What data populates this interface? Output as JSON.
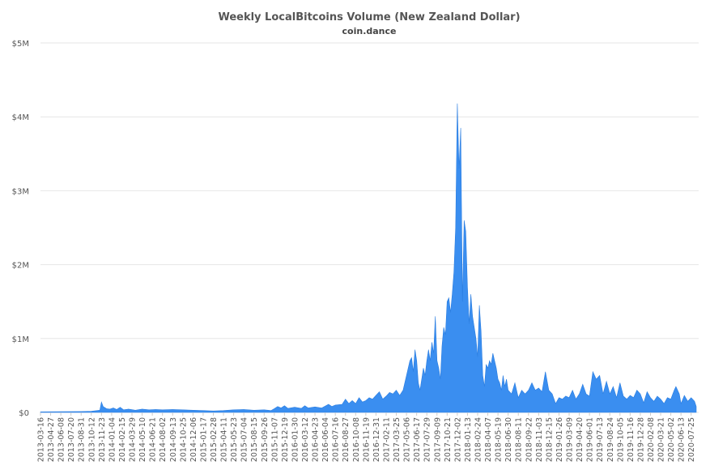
{
  "chart_data": {
    "type": "area",
    "title": "Weekly LocalBitcoins Volume (New Zealand Dollar)",
    "subtitle": "coin.dance",
    "xlabel": "",
    "ylabel": "",
    "ylim": [
      0,
      5000000
    ],
    "y_ticks": [
      {
        "value": 0,
        "label": "$0"
      },
      {
        "value": 1000000,
        "label": "$1M"
      },
      {
        "value": 2000000,
        "label": "$2M"
      },
      {
        "value": 3000000,
        "label": "$3M"
      },
      {
        "value": 4000000,
        "label": "$4M"
      },
      {
        "value": 5000000,
        "label": "$5M"
      }
    ],
    "x_start": "2013-03-16",
    "x_end": "2020-08-15",
    "x_ticks": [
      "2013-03-16",
      "2013-04-27",
      "2013-06-08",
      "2013-07-20",
      "2013-08-31",
      "2013-10-12",
      "2013-11-23",
      "2014-01-04",
      "2014-02-15",
      "2014-03-29",
      "2014-05-10",
      "2014-06-21",
      "2014-08-02",
      "2014-09-13",
      "2014-10-25",
      "2014-12-06",
      "2015-01-17",
      "2015-02-28",
      "2015-04-11",
      "2015-05-23",
      "2015-07-04",
      "2015-08-15",
      "2015-09-26",
      "2015-11-07",
      "2015-12-19",
      "2016-01-30",
      "2016-03-12",
      "2016-04-23",
      "2016-06-04",
      "2016-07-16",
      "2016-08-27",
      "2016-10-08",
      "2016-11-19",
      "2016-12-31",
      "2017-02-11",
      "2017-03-25",
      "2017-05-06",
      "2017-06-17",
      "2017-07-29",
      "2017-09-09",
      "2017-10-21",
      "2017-12-02",
      "2018-01-13",
      "2018-02-24",
      "2018-04-07",
      "2018-05-19",
      "2018-06-30",
      "2018-08-11",
      "2018-09-22",
      "2018-11-03",
      "2018-12-15",
      "2019-01-26",
      "2019-03-09",
      "2019-04-20",
      "2019-06-01",
      "2019-07-13",
      "2019-08-24",
      "2019-10-05",
      "2019-11-16",
      "2019-12-28",
      "2020-02-08",
      "2020-03-21",
      "2020-05-02",
      "2020-06-13",
      "2020-07-25"
    ],
    "series": [
      {
        "color": "#3a8ef0",
        "points": [
          [
            "2013-03-16",
            8000
          ],
          [
            "2013-06-08",
            10000
          ],
          [
            "2013-08-31",
            12000
          ],
          [
            "2013-10-12",
            15000
          ],
          [
            "2013-11-16",
            30000
          ],
          [
            "2013-11-23",
            140000
          ],
          [
            "2013-11-30",
            80000
          ],
          [
            "2013-12-14",
            50000
          ],
          [
            "2013-12-28",
            45000
          ],
          [
            "2014-01-11",
            60000
          ],
          [
            "2014-01-25",
            40000
          ],
          [
            "2014-02-08",
            70000
          ],
          [
            "2014-02-22",
            35000
          ],
          [
            "2014-03-15",
            45000
          ],
          [
            "2014-04-12",
            30000
          ],
          [
            "2014-05-10",
            45000
          ],
          [
            "2014-06-07",
            35000
          ],
          [
            "2014-07-05",
            40000
          ],
          [
            "2014-08-02",
            35000
          ],
          [
            "2014-09-13",
            40000
          ],
          [
            "2014-10-25",
            35000
          ],
          [
            "2014-12-06",
            30000
          ],
          [
            "2015-01-17",
            25000
          ],
          [
            "2015-02-28",
            20000
          ],
          [
            "2015-04-11",
            25000
          ],
          [
            "2015-05-23",
            35000
          ],
          [
            "2015-07-04",
            40000
          ],
          [
            "2015-08-15",
            30000
          ],
          [
            "2015-09-26",
            35000
          ],
          [
            "2015-10-24",
            25000
          ],
          [
            "2015-11-07",
            50000
          ],
          [
            "2015-11-21",
            80000
          ],
          [
            "2015-12-05",
            60000
          ],
          [
            "2015-12-19",
            90000
          ],
          [
            "2016-01-02",
            55000
          ],
          [
            "2016-01-30",
            70000
          ],
          [
            "2016-02-27",
            55000
          ],
          [
            "2016-03-12",
            90000
          ],
          [
            "2016-03-26",
            60000
          ],
          [
            "2016-04-23",
            75000
          ],
          [
            "2016-05-21",
            60000
          ],
          [
            "2016-06-18",
            110000
          ],
          [
            "2016-07-02",
            80000
          ],
          [
            "2016-07-16",
            100000
          ],
          [
            "2016-08-13",
            110000
          ],
          [
            "2016-08-27",
            180000
          ],
          [
            "2016-09-10",
            120000
          ],
          [
            "2016-09-24",
            160000
          ],
          [
            "2016-10-08",
            120000
          ],
          [
            "2016-10-22",
            200000
          ],
          [
            "2016-11-05",
            140000
          ],
          [
            "2016-11-19",
            160000
          ],
          [
            "2016-12-03",
            200000
          ],
          [
            "2016-12-17",
            180000
          ],
          [
            "2016-12-31",
            230000
          ],
          [
            "2017-01-14",
            280000
          ],
          [
            "2017-01-28",
            180000
          ],
          [
            "2017-02-11",
            220000
          ],
          [
            "2017-02-25",
            270000
          ],
          [
            "2017-03-11",
            250000
          ],
          [
            "2017-03-25",
            300000
          ],
          [
            "2017-04-08",
            230000
          ],
          [
            "2017-04-22",
            300000
          ],
          [
            "2017-05-06",
            500000
          ],
          [
            "2017-05-20",
            700000
          ],
          [
            "2017-05-27",
            740000
          ],
          [
            "2017-06-03",
            550000
          ],
          [
            "2017-06-10",
            850000
          ],
          [
            "2017-06-17",
            700000
          ],
          [
            "2017-06-24",
            400000
          ],
          [
            "2017-07-01",
            300000
          ],
          [
            "2017-07-08",
            450000
          ],
          [
            "2017-07-15",
            600000
          ],
          [
            "2017-07-22",
            500000
          ],
          [
            "2017-07-29",
            700000
          ],
          [
            "2017-08-05",
            850000
          ],
          [
            "2017-08-12",
            700000
          ],
          [
            "2017-08-19",
            950000
          ],
          [
            "2017-08-26",
            800000
          ],
          [
            "2017-09-02",
            1300000
          ],
          [
            "2017-09-09",
            700000
          ],
          [
            "2017-09-16",
            600000
          ],
          [
            "2017-09-23",
            450000
          ],
          [
            "2017-09-30",
            900000
          ],
          [
            "2017-10-07",
            1150000
          ],
          [
            "2017-10-14",
            1050000
          ],
          [
            "2017-10-21",
            1500000
          ],
          [
            "2017-10-28",
            1550000
          ],
          [
            "2017-11-04",
            1350000
          ],
          [
            "2017-11-11",
            1600000
          ],
          [
            "2017-11-18",
            1900000
          ],
          [
            "2017-11-25",
            2500000
          ],
          [
            "2017-12-02",
            4180000
          ],
          [
            "2017-12-09",
            3300000
          ],
          [
            "2017-12-16",
            3850000
          ],
          [
            "2017-12-23",
            1500000
          ],
          [
            "2017-12-30",
            2600000
          ],
          [
            "2018-01-06",
            2450000
          ],
          [
            "2018-01-13",
            1700000
          ],
          [
            "2018-01-20",
            1200000
          ],
          [
            "2018-01-27",
            1600000
          ],
          [
            "2018-02-03",
            1300000
          ],
          [
            "2018-02-10",
            1150000
          ],
          [
            "2018-02-17",
            1000000
          ],
          [
            "2018-02-24",
            750000
          ],
          [
            "2018-03-03",
            1450000
          ],
          [
            "2018-03-10",
            1100000
          ],
          [
            "2018-03-17",
            500000
          ],
          [
            "2018-03-24",
            350000
          ],
          [
            "2018-03-31",
            650000
          ],
          [
            "2018-04-07",
            600000
          ],
          [
            "2018-04-14",
            700000
          ],
          [
            "2018-04-21",
            650000
          ],
          [
            "2018-04-28",
            800000
          ],
          [
            "2018-05-05",
            700000
          ],
          [
            "2018-05-12",
            600000
          ],
          [
            "2018-05-19",
            450000
          ],
          [
            "2018-05-26",
            400000
          ],
          [
            "2018-06-02",
            300000
          ],
          [
            "2018-06-09",
            500000
          ],
          [
            "2018-06-16",
            350000
          ],
          [
            "2018-06-23",
            450000
          ],
          [
            "2018-06-30",
            300000
          ],
          [
            "2018-07-14",
            250000
          ],
          [
            "2018-07-28",
            400000
          ],
          [
            "2018-08-11",
            200000
          ],
          [
            "2018-08-25",
            300000
          ],
          [
            "2018-09-08",
            250000
          ],
          [
            "2018-09-22",
            300000
          ],
          [
            "2018-10-06",
            400000
          ],
          [
            "2018-10-20",
            300000
          ],
          [
            "2018-11-03",
            330000
          ],
          [
            "2018-11-17",
            280000
          ],
          [
            "2018-12-01",
            550000
          ],
          [
            "2018-12-15",
            300000
          ],
          [
            "2018-12-29",
            250000
          ],
          [
            "2019-01-12",
            120000
          ],
          [
            "2019-01-26",
            200000
          ],
          [
            "2019-02-09",
            180000
          ],
          [
            "2019-02-23",
            220000
          ],
          [
            "2019-03-09",
            200000
          ],
          [
            "2019-03-23",
            300000
          ],
          [
            "2019-04-06",
            180000
          ],
          [
            "2019-04-20",
            250000
          ],
          [
            "2019-05-04",
            380000
          ],
          [
            "2019-05-18",
            250000
          ],
          [
            "2019-06-01",
            220000
          ],
          [
            "2019-06-15",
            550000
          ],
          [
            "2019-06-29",
            450000
          ],
          [
            "2019-07-13",
            500000
          ],
          [
            "2019-07-27",
            250000
          ],
          [
            "2019-08-10",
            420000
          ],
          [
            "2019-08-24",
            250000
          ],
          [
            "2019-09-07",
            350000
          ],
          [
            "2019-09-21",
            200000
          ],
          [
            "2019-10-05",
            400000
          ],
          [
            "2019-10-19",
            220000
          ],
          [
            "2019-11-02",
            180000
          ],
          [
            "2019-11-16",
            230000
          ],
          [
            "2019-11-30",
            200000
          ],
          [
            "2019-12-14",
            300000
          ],
          [
            "2019-12-28",
            250000
          ],
          [
            "2020-01-11",
            130000
          ],
          [
            "2020-01-25",
            280000
          ],
          [
            "2020-02-08",
            200000
          ],
          [
            "2020-02-22",
            150000
          ],
          [
            "2020-03-07",
            220000
          ],
          [
            "2020-03-21",
            180000
          ],
          [
            "2020-04-04",
            120000
          ],
          [
            "2020-04-18",
            200000
          ],
          [
            "2020-05-02",
            180000
          ],
          [
            "2020-05-16",
            300000
          ],
          [
            "2020-05-23",
            350000
          ],
          [
            "2020-06-06",
            250000
          ],
          [
            "2020-06-13",
            120000
          ],
          [
            "2020-06-27",
            230000
          ],
          [
            "2020-07-11",
            150000
          ],
          [
            "2020-07-25",
            200000
          ],
          [
            "2020-08-08",
            150000
          ],
          [
            "2020-08-15",
            80000
          ]
        ]
      }
    ]
  }
}
